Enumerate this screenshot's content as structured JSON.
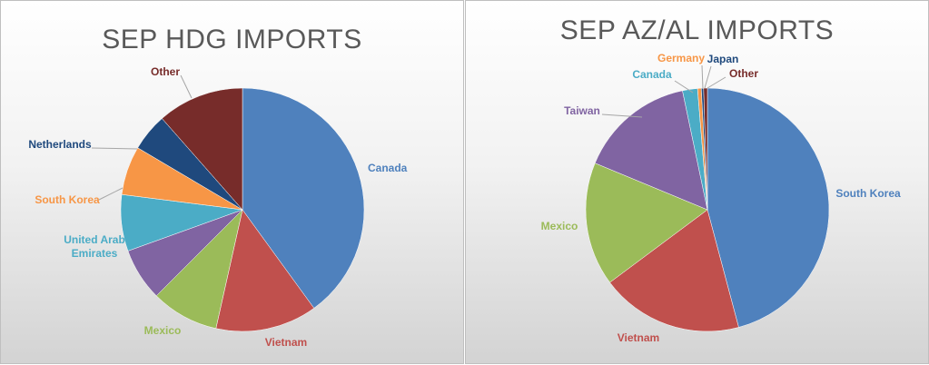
{
  "chart_data": [
    {
      "type": "pie",
      "title": "SEP HDG IMPORTS",
      "series": [
        {
          "values": [
            {
              "label": "Canada",
              "value": 40.0,
              "color": "#4F81BD"
            },
            {
              "label": "Vietnam",
              "value": 13.5,
              "color": "#C0504D"
            },
            {
              "label": "Mexico",
              "value": 9.0,
              "color": "#9BBB59"
            },
            {
              "label": "",
              "value": 7.0,
              "color": "#8064A2"
            },
            {
              "label": "United Arab\nEmirates",
              "value": 7.5,
              "color": "#4BACC6"
            },
            {
              "label": "South Korea",
              "value": 6.5,
              "color": "#F79646"
            },
            {
              "label": "Netherlands",
              "value": 5.0,
              "color": "#1F497D"
            },
            {
              "label": "Other",
              "value": 11.5,
              "color": "#772C2A"
            }
          ]
        }
      ],
      "legend": "none"
    },
    {
      "type": "pie",
      "title": "SEP AZ/AL IMPORTS",
      "series": [
        {
          "values": [
            {
              "label": "South Korea",
              "value": 46.0,
              "color": "#4F81BD"
            },
            {
              "label": "Vietnam",
              "value": 19.0,
              "color": "#C0504D"
            },
            {
              "label": "Mexico",
              "value": 16.5,
              "color": "#9BBB59"
            },
            {
              "label": "Taiwan",
              "value": 15.5,
              "color": "#8064A2"
            },
            {
              "label": "Canada",
              "value": 2.0,
              "color": "#4BACC6"
            },
            {
              "label": "Germany",
              "value": 0.5,
              "color": "#F79646"
            },
            {
              "label": "Japan",
              "value": 0.3,
              "color": "#1F497D"
            },
            {
              "label": "Other",
              "value": 0.5,
              "color": "#772C2A"
            }
          ]
        }
      ],
      "legend": "none"
    }
  ]
}
